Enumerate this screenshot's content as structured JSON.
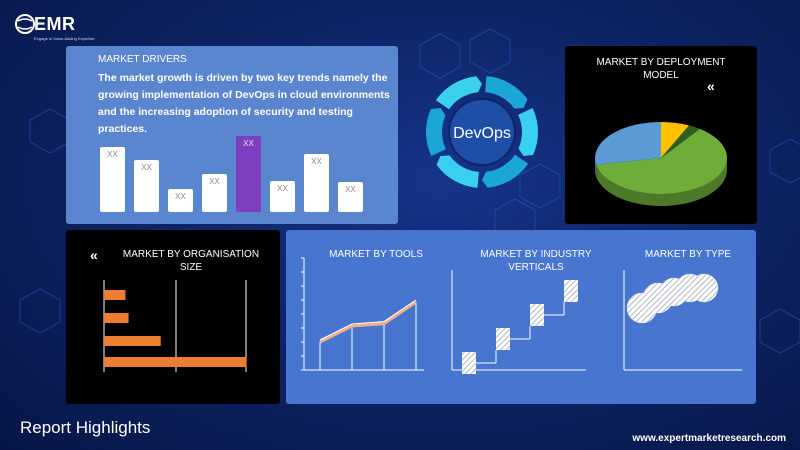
{
  "logo": {
    "name": "EMR",
    "tagline": "Engage in Value-Adding Expertise"
  },
  "drivers": {
    "title": "MARKET DRIVERS",
    "text": "The market growth is driven by two key trends namely the growing implementation of DevOps in cloud environments and the increasing adoption of security and testing practices.",
    "bar_label": "XX",
    "bars": [
      0.72,
      0.58,
      0.26,
      0.42,
      0.85,
      0.34,
      0.65,
      0.33
    ],
    "highlight_index": 4,
    "highlight_color": "#7d3fbf"
  },
  "devops": {
    "label": "DevOps",
    "arrow_color": "#3ad1f0",
    "circle_color": "#1f4ea8"
  },
  "deployment": {
    "title_line1": "MARKET BY DEPLOYMENT",
    "title_line2": "MODEL",
    "slices": [
      {
        "value": 0.62,
        "color": "#6fad3b"
      },
      {
        "value": 0.28,
        "color": "#5b9bd5"
      },
      {
        "value": 0.07,
        "color": "#ffc000"
      },
      {
        "value": 0.03,
        "color": "#2e5f1f"
      }
    ]
  },
  "organisation": {
    "title_line1": "MARKET BY ORGANISATION",
    "title_line2": "SIZE",
    "bars": [
      0.14,
      0.16,
      0.37,
      0.93
    ],
    "color": "#ed7d31"
  },
  "tools": {
    "title": "MARKET BY TOOLS",
    "line": [
      0.35,
      0.55,
      0.58,
      0.85
    ],
    "line_color": "#f4b183"
  },
  "industry": {
    "title_line1": "MARKET BY INDUSTRY",
    "title_line2": "VERTICALS",
    "steps": 4
  },
  "type": {
    "title": "MARKET BY TYPE",
    "circles": 5
  },
  "footer": {
    "heading": "Report Highlights",
    "website": "www.expertmarketresearch.com"
  }
}
